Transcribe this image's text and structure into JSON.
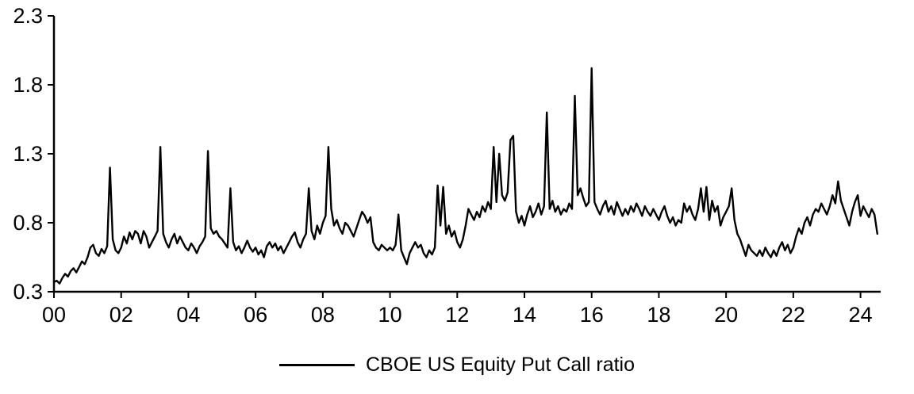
{
  "chart_data": {
    "type": "line",
    "title": "",
    "legend": "CBOE US Equity Put Call ratio",
    "line_color": "#000000",
    "xlim": [
      2000,
      2024.6
    ],
    "ylim": [
      0.3,
      2.3
    ],
    "y_ticks": [
      0.3,
      0.8,
      1.3,
      1.8,
      2.3
    ],
    "x_tick_years": [
      2000,
      2002,
      2004,
      2006,
      2008,
      2010,
      2012,
      2014,
      2016,
      2018,
      2020,
      2022,
      2024
    ],
    "x_tick_labels": [
      "00",
      "02",
      "04",
      "06",
      "08",
      "10",
      "12",
      "14",
      "16",
      "18",
      "20",
      "22",
      "24"
    ],
    "x_start_year": 2000,
    "x_step_months": 1,
    "values": [
      0.37,
      0.38,
      0.36,
      0.4,
      0.43,
      0.41,
      0.45,
      0.47,
      0.44,
      0.48,
      0.52,
      0.5,
      0.55,
      0.62,
      0.64,
      0.58,
      0.56,
      0.61,
      0.58,
      0.63,
      1.2,
      0.68,
      0.6,
      0.58,
      0.62,
      0.7,
      0.65,
      0.73,
      0.68,
      0.74,
      0.72,
      0.65,
      0.74,
      0.7,
      0.62,
      0.66,
      0.7,
      0.74,
      1.35,
      0.72,
      0.66,
      0.62,
      0.68,
      0.72,
      0.65,
      0.7,
      0.66,
      0.62,
      0.6,
      0.65,
      0.62,
      0.58,
      0.63,
      0.66,
      0.7,
      1.32,
      0.76,
      0.72,
      0.74,
      0.7,
      0.68,
      0.65,
      0.62,
      1.05,
      0.66,
      0.6,
      0.63,
      0.58,
      0.62,
      0.67,
      0.62,
      0.59,
      0.62,
      0.57,
      0.6,
      0.55,
      0.63,
      0.66,
      0.62,
      0.65,
      0.6,
      0.63,
      0.58,
      0.62,
      0.66,
      0.7,
      0.73,
      0.66,
      0.62,
      0.68,
      0.72,
      1.05,
      0.74,
      0.68,
      0.78,
      0.72,
      0.8,
      0.85,
      1.35,
      0.9,
      0.78,
      0.82,
      0.76,
      0.72,
      0.8,
      0.78,
      0.74,
      0.7,
      0.76,
      0.82,
      0.88,
      0.85,
      0.8,
      0.84,
      0.66,
      0.62,
      0.6,
      0.64,
      0.62,
      0.6,
      0.62,
      0.6,
      0.64,
      0.86,
      0.6,
      0.55,
      0.5,
      0.58,
      0.62,
      0.66,
      0.62,
      0.64,
      0.58,
      0.55,
      0.6,
      0.57,
      0.62,
      1.07,
      0.78,
      1.06,
      0.72,
      0.78,
      0.7,
      0.74,
      0.66,
      0.62,
      0.68,
      0.78,
      0.9,
      0.86,
      0.82,
      0.88,
      0.84,
      0.92,
      0.88,
      0.95,
      0.9,
      1.35,
      0.95,
      1.3,
      1.0,
      0.96,
      1.02,
      1.4,
      1.43,
      0.88,
      0.8,
      0.85,
      0.78,
      0.86,
      0.92,
      0.84,
      0.88,
      0.94,
      0.86,
      0.92,
      1.6,
      0.9,
      0.96,
      0.88,
      0.92,
      0.86,
      0.9,
      0.88,
      0.94,
      0.9,
      1.72,
      1.0,
      1.05,
      0.98,
      0.92,
      0.95,
      1.92,
      0.95,
      0.9,
      0.86,
      0.92,
      0.96,
      0.88,
      0.92,
      0.86,
      0.95,
      0.9,
      0.85,
      0.9,
      0.86,
      0.92,
      0.88,
      0.94,
      0.9,
      0.85,
      0.92,
      0.88,
      0.85,
      0.9,
      0.86,
      0.82,
      0.88,
      0.92,
      0.85,
      0.8,
      0.84,
      0.78,
      0.82,
      0.8,
      0.94,
      0.88,
      0.92,
      0.86,
      0.82,
      0.9,
      1.05,
      0.88,
      1.06,
      0.82,
      0.96,
      0.88,
      0.92,
      0.78,
      0.84,
      0.88,
      0.92,
      1.05,
      0.82,
      0.72,
      0.68,
      0.62,
      0.56,
      0.64,
      0.6,
      0.58,
      0.56,
      0.6,
      0.56,
      0.62,
      0.58,
      0.55,
      0.6,
      0.56,
      0.62,
      0.66,
      0.6,
      0.64,
      0.58,
      0.62,
      0.7,
      0.76,
      0.72,
      0.8,
      0.84,
      0.78,
      0.86,
      0.9,
      0.88,
      0.94,
      0.9,
      0.86,
      0.92,
      1.0,
      0.94,
      1.1,
      0.96,
      0.9,
      0.84,
      0.78,
      0.88,
      0.95,
      1.0,
      0.85,
      0.92,
      0.88,
      0.84,
      0.9,
      0.86,
      0.72
    ]
  }
}
